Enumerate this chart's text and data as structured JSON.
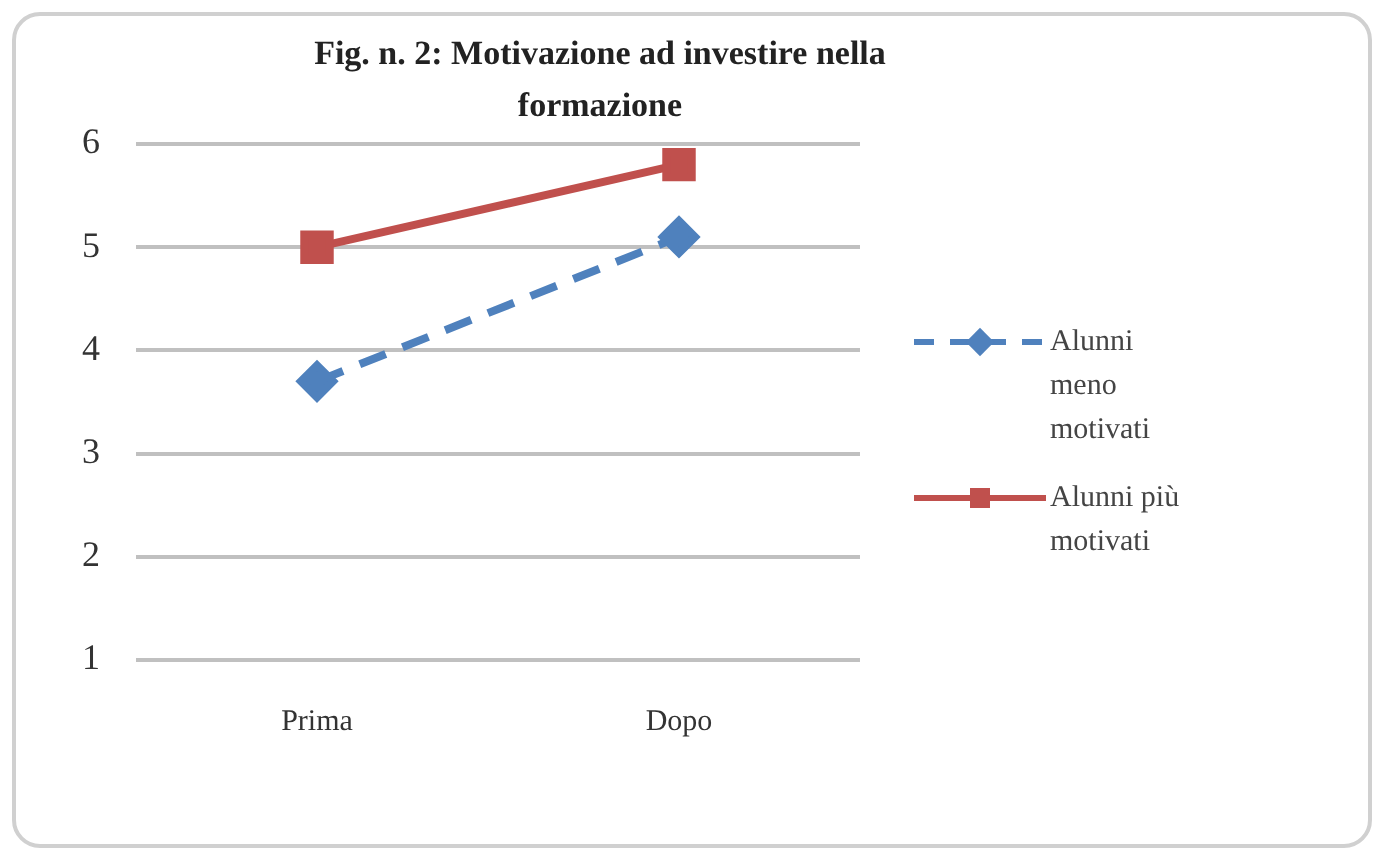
{
  "chart_data": {
    "type": "line",
    "title": "Fig. n. 2: Motivazione ad investire nella formazione",
    "categories": [
      "Prima",
      "Dopo"
    ],
    "series": [
      {
        "name": "Alunni meno motivati",
        "color": "#4f81bd",
        "values": [
          3.7,
          5.1
        ],
        "marker": "diamond",
        "line_style": "dashed"
      },
      {
        "name": "Alunni più motivati",
        "color": "#c0504d",
        "values": [
          5,
          5.8
        ],
        "marker": "square",
        "line_style": "solid"
      }
    ],
    "ylim": [
      1,
      6
    ],
    "yticks": [
      1,
      2,
      3,
      4,
      5,
      6
    ],
    "grid": "y",
    "legend": "right"
  }
}
